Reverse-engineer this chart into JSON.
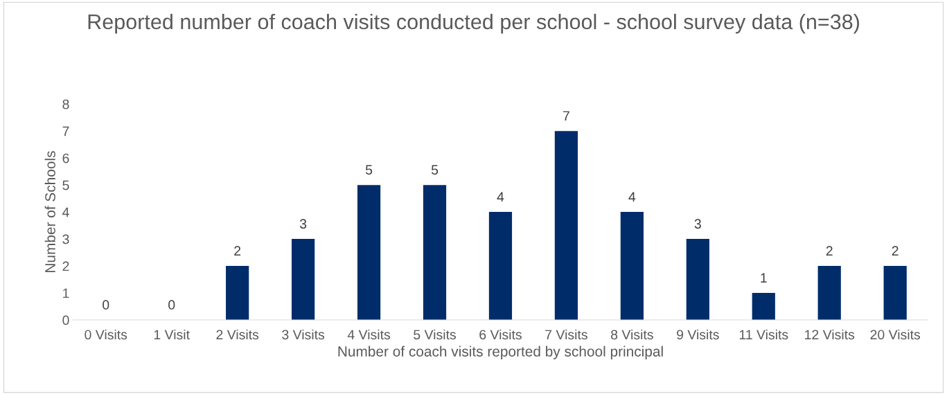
{
  "chart_data": {
    "type": "bar",
    "title": "Reported number of coach visits conducted per school - school survey data (n=38)",
    "xlabel": "Number of coach visits reported by school principal",
    "ylabel": "Number of Schools",
    "categories": [
      "0 Visits",
      "1 Visit",
      "2 Visits",
      "3 Visits",
      "4 Visits",
      "5 Visits",
      "6 Visits",
      "7 Visits",
      "8 Visits",
      "9 Visits",
      "11 Visits",
      "12 Visits",
      "20 Visits"
    ],
    "values": [
      0,
      0,
      2,
      3,
      5,
      5,
      4,
      7,
      4,
      3,
      1,
      2,
      2
    ],
    "color": "#002d6a",
    "ylim": [
      0,
      8
    ],
    "yticks": [
      0,
      1,
      2,
      3,
      4,
      5,
      6,
      7,
      8
    ],
    "grid": false,
    "data_labels": true,
    "legend": false
  }
}
